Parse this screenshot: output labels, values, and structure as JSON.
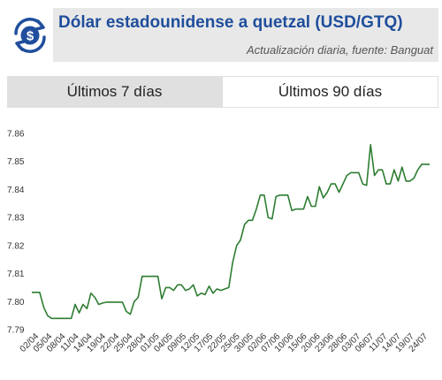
{
  "header": {
    "title": "Dólar estadounidense a quetzal (USD/GTQ)",
    "subtitle": "Actualización diaria, fuente: Banguat",
    "logo_icon": "dollar-exchange-icon"
  },
  "tabs": [
    {
      "label": "Últimos 7 días",
      "active": false
    },
    {
      "label": "Últimos 90 días",
      "active": true
    }
  ],
  "colors": {
    "line": "#2e7d32",
    "title": "#1f4e9c",
    "icon": "#1f4e9c"
  },
  "chart_data": {
    "type": "line",
    "title": "",
    "xlabel": "",
    "ylabel": "",
    "ylim": [
      7.79,
      7.86
    ],
    "yticks": [
      7.79,
      7.8,
      7.81,
      7.82,
      7.83,
      7.84,
      7.85,
      7.86
    ],
    "grid": false,
    "legend": "none",
    "xtick_labels": [
      "02/04",
      "05/04",
      "08/04",
      "11/04",
      "14/04",
      "19/04",
      "22/04",
      "25/04",
      "28/04",
      "01/05",
      "04/05",
      "09/05",
      "12/05",
      "17/05",
      "22/05",
      "25/05",
      "30/05",
      "02/06",
      "07/06",
      "10/06",
      "15/06",
      "20/06",
      "23/06",
      "28/06",
      "03/07",
      "06/07",
      "11/07",
      "14/07",
      "19/07",
      "24/07"
    ],
    "series": [
      {
        "name": "",
        "values": [
          7.8033,
          7.8033,
          7.8033,
          7.798,
          7.795,
          7.794,
          7.794,
          7.794,
          7.794,
          7.794,
          7.794,
          7.799,
          7.796,
          7.799,
          7.7975,
          7.803,
          7.8015,
          7.799,
          7.7995,
          7.7998,
          7.7998,
          7.7998,
          7.7998,
          7.7998,
          7.7965,
          7.7955,
          7.8,
          7.8015,
          7.809,
          7.809,
          7.809,
          7.809,
          7.809,
          7.801,
          7.805,
          7.805,
          7.804,
          7.806,
          7.806,
          7.804,
          7.8045,
          7.806,
          7.802,
          7.803,
          7.8025,
          7.8055,
          7.803,
          7.8045,
          7.804,
          7.8045,
          7.805,
          7.814,
          7.82,
          7.822,
          7.8275,
          7.829,
          7.829,
          7.833,
          7.838,
          7.838,
          7.83,
          7.8295,
          7.8375,
          7.838,
          7.838,
          7.838,
          7.8325,
          7.833,
          7.833,
          7.833,
          7.8375,
          7.834,
          7.834,
          7.841,
          7.837,
          7.839,
          7.842,
          7.842,
          7.839,
          7.842,
          7.845,
          7.846,
          7.846,
          7.846,
          7.842,
          7.8415,
          7.856,
          7.845,
          7.847,
          7.847,
          7.842,
          7.842,
          7.847,
          7.843,
          7.848,
          7.843,
          7.843,
          7.844,
          7.847,
          7.849,
          7.849,
          7.849
        ]
      }
    ]
  }
}
